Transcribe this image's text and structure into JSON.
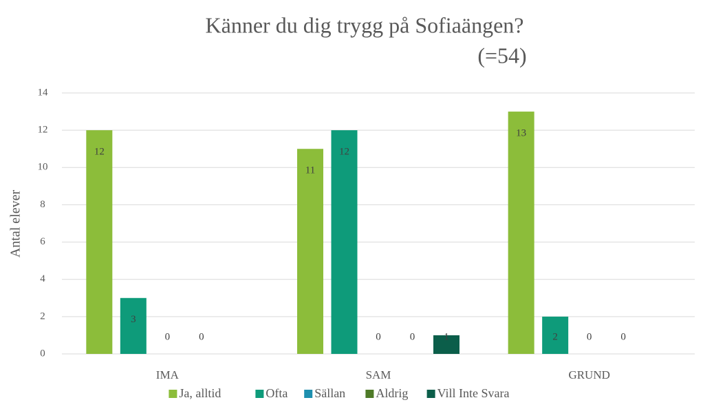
{
  "chart_data": {
    "type": "bar",
    "title": "Känner du dig trygg på Sofiaängen?",
    "subtitle": "(=54)",
    "y_label": "Antal elever",
    "categories": [
      "IMA",
      "SAM",
      "GRUND"
    ],
    "series": [
      {
        "name": "Ja, alltid",
        "color": "#8cbd3a",
        "values": [
          12,
          11,
          13
        ]
      },
      {
        "name": "Ofta",
        "color": "#0e9b7a",
        "values": [
          3,
          12,
          2
        ]
      },
      {
        "name": "Sällan",
        "color": "#1e8fae",
        "values": [
          0,
          0,
          0
        ]
      },
      {
        "name": "Aldrig",
        "color": "#4e7a27",
        "values": [
          0,
          0,
          0
        ]
      },
      {
        "name": "Vill Inte Svara",
        "color": "#0b5e4a",
        "values": [
          null,
          1,
          null
        ]
      }
    ],
    "ylim": [
      0,
      14
    ],
    "yticks": [
      0,
      2,
      4,
      6,
      8,
      10,
      12,
      14
    ],
    "grid": true,
    "legend": "bottom"
  }
}
